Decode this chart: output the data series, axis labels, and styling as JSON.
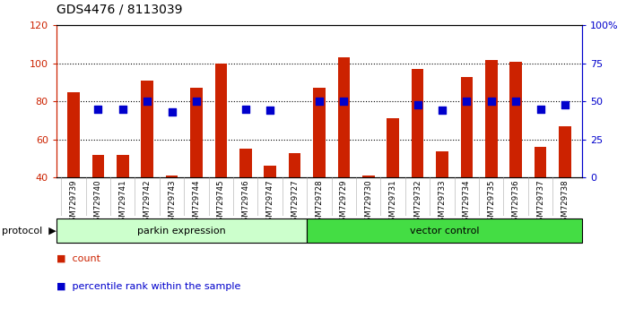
{
  "title": "GDS4476 / 8113039",
  "samples": [
    "GSM729739",
    "GSM729740",
    "GSM729741",
    "GSM729742",
    "GSM729743",
    "GSM729744",
    "GSM729745",
    "GSM729746",
    "GSM729747",
    "GSM729727",
    "GSM729728",
    "GSM729729",
    "GSM729730",
    "GSM729731",
    "GSM729732",
    "GSM729733",
    "GSM729734",
    "GSM729735",
    "GSM729736",
    "GSM729737",
    "GSM729738"
  ],
  "counts": [
    85,
    52,
    52,
    91,
    41,
    87,
    100,
    55,
    46,
    53,
    87,
    103,
    41,
    71,
    97,
    54,
    93,
    102,
    101,
    56,
    67
  ],
  "percentiles": [
    null,
    45,
    45,
    50,
    43,
    50,
    null,
    45,
    44,
    null,
    50,
    50,
    null,
    null,
    48,
    44,
    50,
    50,
    50,
    45,
    48
  ],
  "parkin_count": 10,
  "vector_count": 11,
  "ylim_left": [
    40,
    120
  ],
  "ylim_right": [
    0,
    100
  ],
  "left_ticks": [
    40,
    60,
    80,
    100,
    120
  ],
  "right_ticks": [
    0,
    25,
    50,
    75,
    100
  ],
  "right_tick_labels": [
    "0",
    "25",
    "50",
    "75",
    "100%"
  ],
  "bar_color": "#cc2200",
  "dot_color": "#0000cc",
  "parkin_label": "parkin expression",
  "vector_label": "vector control",
  "protocol_label": "protocol",
  "legend_count_label": "count",
  "legend_pct_label": "percentile rank within the sample",
  "parkin_bg": "#ccffcc",
  "vector_bg": "#44dd44",
  "bar_width": 0.5,
  "dot_size": 28,
  "grid_lines": [
    60,
    80,
    100
  ],
  "bg_gray": "#d8d8d8"
}
